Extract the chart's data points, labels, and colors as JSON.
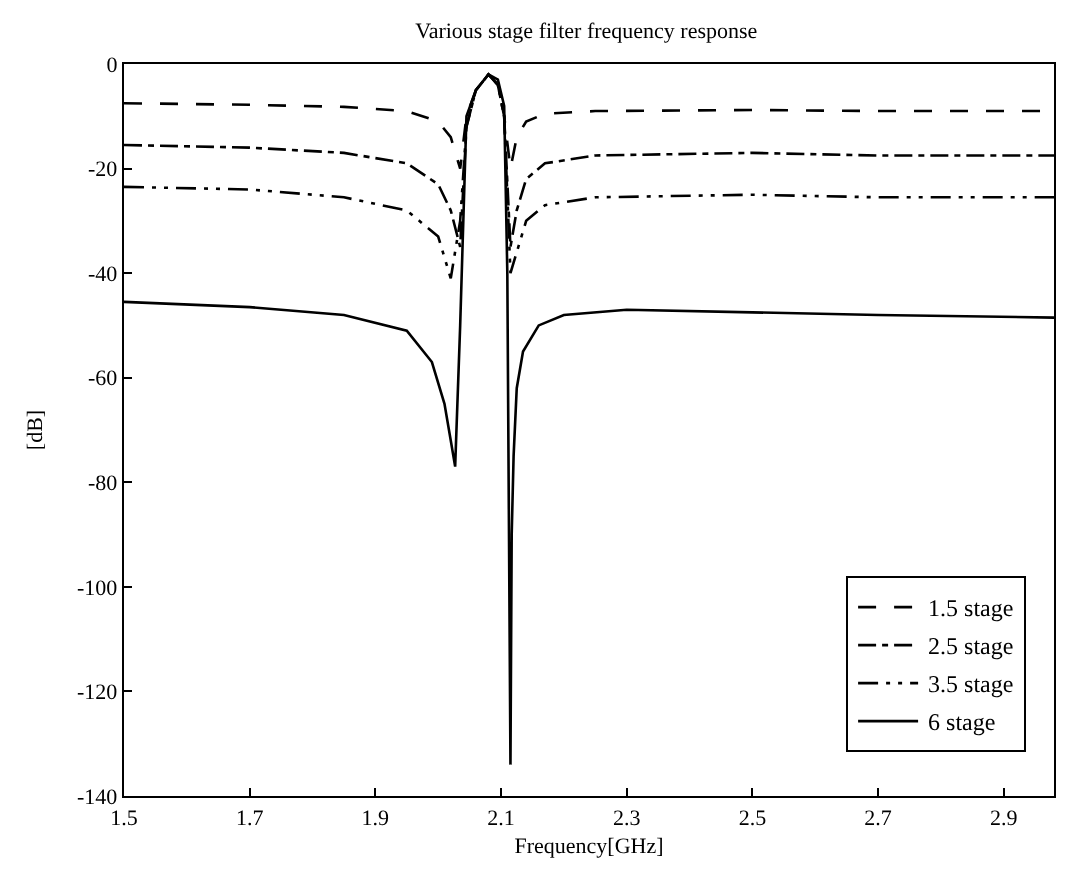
{
  "chart_data": {
    "type": "line",
    "title": "Various stage filter frequency response",
    "xlabel": "Frequency[GHz]",
    "ylabel": "[dB]",
    "xlim": [
      1.5,
      2.98
    ],
    "ylim": [
      -140,
      0
    ],
    "xticks": [
      1.5,
      1.7,
      1.9,
      2.1,
      2.3,
      2.5,
      2.7,
      2.9
    ],
    "yticks": [
      -140,
      -120,
      -100,
      -80,
      -60,
      -40,
      -20,
      0
    ],
    "legend": "bottom right",
    "marker": "none",
    "series": [
      {
        "name": "1.5 stage",
        "color": "#000000",
        "line_style": "dashed",
        "x": [
          1.5,
          1.7,
          1.85,
          1.95,
          2.0,
          2.02,
          2.035,
          2.045,
          2.06,
          2.08,
          2.095,
          2.105,
          2.115,
          2.125,
          2.14,
          2.17,
          2.25,
          2.5,
          2.7,
          2.98
        ],
        "values": [
          -7.5,
          -7.8,
          -8.2,
          -9,
          -11,
          -14,
          -20,
          -10,
          -5,
          -2,
          -4,
          -10,
          -20,
          -14,
          -11,
          -9.5,
          -9,
          -8.8,
          -9,
          -9
        ]
      },
      {
        "name": "2.5 stage",
        "color": "#000000",
        "line_style": "dashdot",
        "x": [
          1.5,
          1.7,
          1.85,
          1.95,
          2.0,
          2.02,
          2.035,
          2.045,
          2.06,
          2.08,
          2.095,
          2.105,
          2.115,
          2.125,
          2.14,
          2.17,
          2.25,
          2.5,
          2.7,
          2.98
        ],
        "values": [
          -15.5,
          -16,
          -17,
          -19,
          -23,
          -28,
          -35,
          -12,
          -5,
          -2,
          -4,
          -10,
          -35,
          -28,
          -22,
          -19,
          -17.5,
          -17,
          -17.5,
          -17.5
        ]
      },
      {
        "name": "3.5 stage",
        "color": "#000000",
        "line_style": "dashdotdot",
        "x": [
          1.5,
          1.7,
          1.85,
          1.95,
          2.0,
          2.02,
          2.035,
          2.045,
          2.06,
          2.08,
          2.095,
          2.105,
          2.115,
          2.125,
          2.14,
          2.17,
          2.25,
          2.5,
          2.7,
          2.98
        ],
        "values": [
          -23.5,
          -24,
          -25.5,
          -28,
          -33,
          -41,
          -30,
          -12,
          -5,
          -2,
          -4,
          -10,
          -40,
          -36,
          -30,
          -27,
          -25.5,
          -25,
          -25.5,
          -25.5
        ]
      },
      {
        "name": "6 stage",
        "color": "#000000",
        "line_style": "solid",
        "x": [
          1.5,
          1.7,
          1.85,
          1.95,
          1.99,
          2.01,
          2.02,
          2.027,
          2.035,
          2.045,
          2.06,
          2.08,
          2.095,
          2.105,
          2.11,
          2.115,
          2.117,
          2.12,
          2.125,
          2.135,
          2.16,
          2.2,
          2.3,
          2.5,
          2.7,
          2.98
        ],
        "values": [
          -45.5,
          -46.5,
          -48,
          -51,
          -57,
          -65,
          -72,
          -77,
          -50,
          -10,
          -5,
          -2,
          -3,
          -8,
          -40,
          -134,
          -90,
          -75,
          -62,
          -55,
          -50,
          -48,
          -47,
          -47.5,
          -48,
          -48.5
        ]
      }
    ]
  }
}
